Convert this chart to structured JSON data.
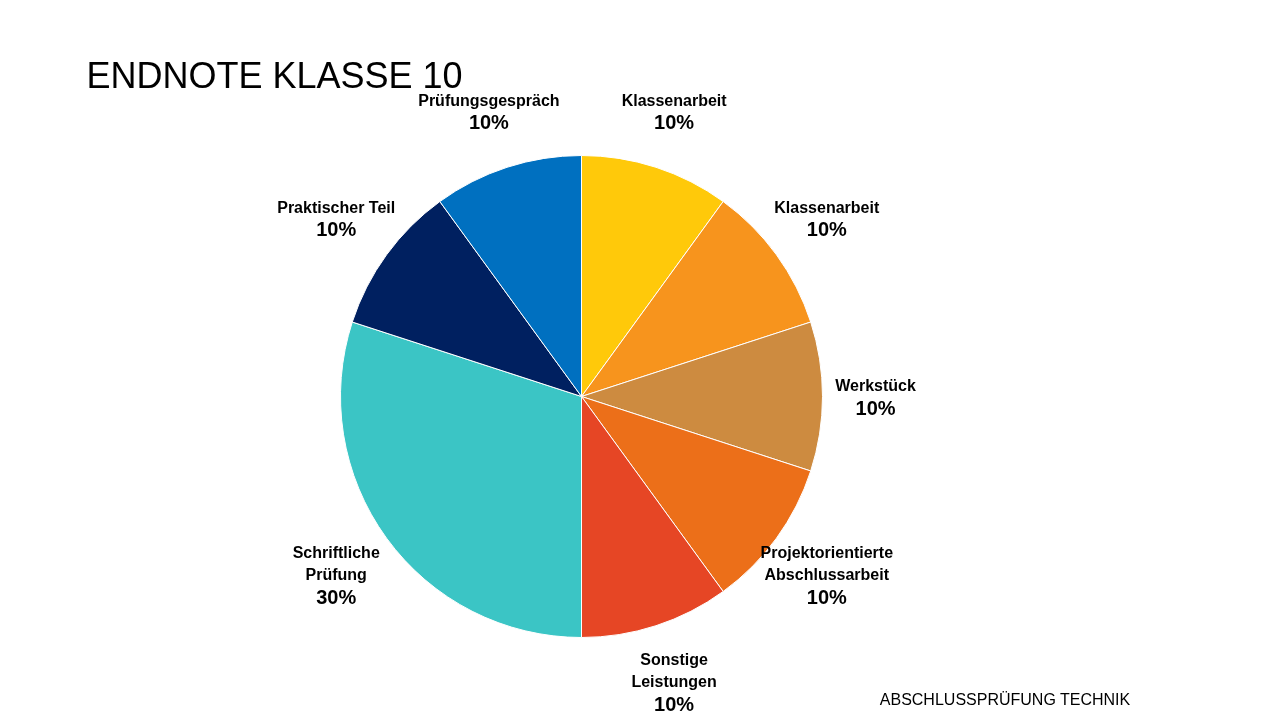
{
  "chart_data": {
    "type": "pie",
    "title": "ENDNOTE KLASSE 10",
    "categories": [
      "Klassenarbeit",
      "Klassenarbeit",
      "Werkstück",
      "Projektorientierte Abschlussarbeit",
      "Sonstige Leistungen",
      "Schriftliche Prüfung",
      "Praktischer Teil",
      "Prüfungsgespräch"
    ],
    "values": [
      10,
      10,
      10,
      10,
      10,
      30,
      10,
      10
    ],
    "value_labels": [
      "10%",
      "10%",
      "10%",
      "10%",
      "10%",
      "30%",
      "10%",
      "10%"
    ],
    "colors": [
      "#ffc90a",
      "#f7941d",
      "#cd8b40",
      "#ec6f19",
      "#e64625",
      "#3bc5c5",
      "#002060",
      "#0070c0"
    ],
    "annotations": [
      "ABSCHLUSSPRÜFUNG TECHNIK"
    ]
  }
}
